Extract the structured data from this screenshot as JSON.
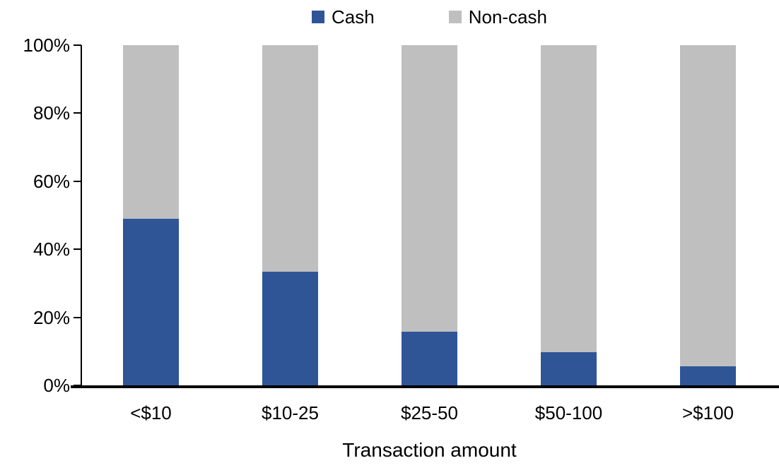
{
  "chart_data": {
    "type": "bar",
    "stacked": true,
    "title": "",
    "xlabel": "Transaction amount",
    "ylabel": "",
    "categories": [
      "<$10",
      "$10-25",
      "$25-50",
      "$50-100",
      ">$100"
    ],
    "series": [
      {
        "name": "Cash",
        "color": "#2F5597",
        "values": [
          49,
          33.5,
          15.7,
          9.7,
          5.6
        ]
      },
      {
        "name": "Non-cash",
        "color": "#BFBFBF",
        "values": [
          51,
          66.5,
          84.3,
          90.3,
          94.4
        ]
      }
    ],
    "ylim": [
      0,
      100
    ],
    "ytick_values": [
      0,
      20,
      40,
      60,
      80,
      100
    ],
    "ytick_labels": [
      "0%",
      "20%",
      "40%",
      "60%",
      "80%",
      "100%"
    ],
    "grid": false,
    "legend_position": "top-center",
    "legend_items": [
      "Cash",
      "Non-cash"
    ]
  },
  "colors": {
    "cash": "#2F5597",
    "non_cash": "#BFBFBF",
    "axis": "#000000",
    "background": "#FFFFFF"
  }
}
